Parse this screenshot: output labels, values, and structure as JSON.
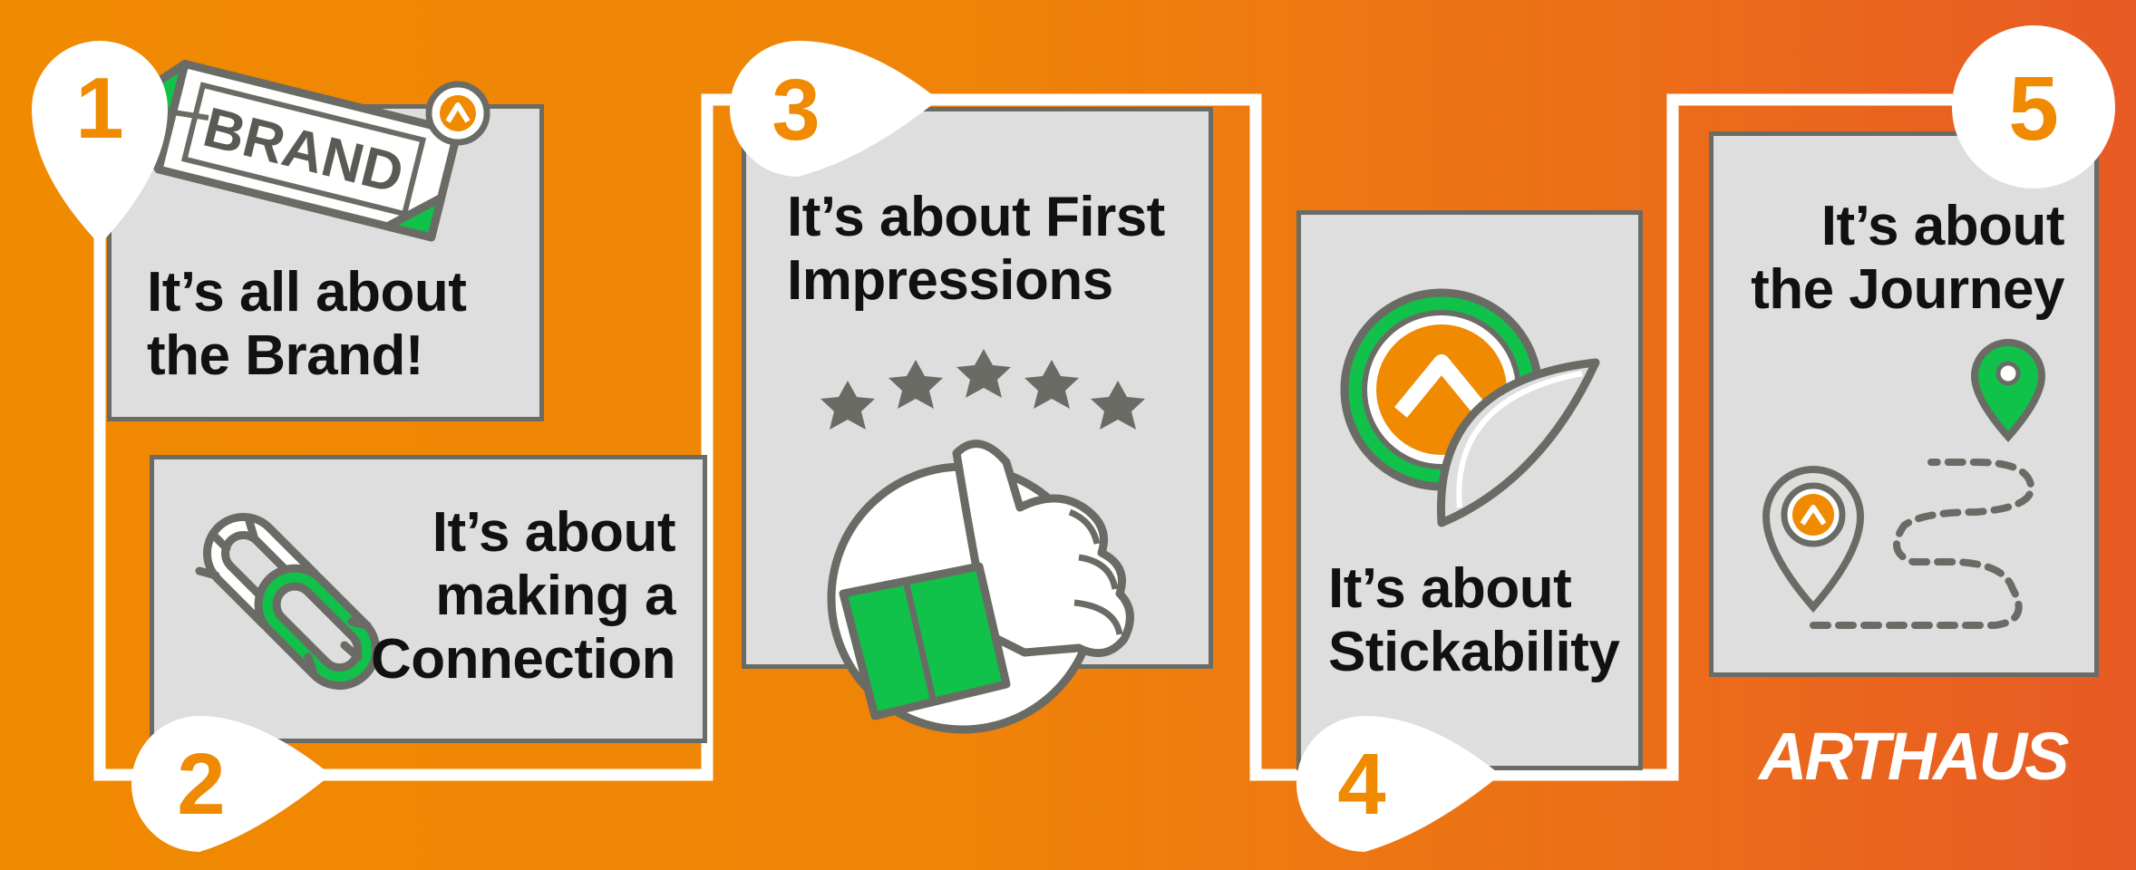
{
  "steps": [
    {
      "number": "1",
      "lines": [
        "It’s all about",
        "the Brand!"
      ]
    },
    {
      "number": "2",
      "lines": [
        "It’s about",
        "making a",
        "Connection"
      ]
    },
    {
      "number": "3",
      "lines": [
        "It’s about First",
        "Impressions"
      ]
    },
    {
      "number": "4",
      "lines": [
        "It’s about",
        "Stickability"
      ]
    },
    {
      "number": "5",
      "lines": [
        "It’s about",
        "the Journey"
      ]
    }
  ],
  "tag_text": "BRAND",
  "rating_stars": 5,
  "logo": "ARTHAUS",
  "colors": {
    "orange": "#f08a00",
    "green": "#10c24a",
    "gray_stroke": "#6b6b66",
    "card_fill": "#dedede",
    "white": "#ffffff"
  }
}
